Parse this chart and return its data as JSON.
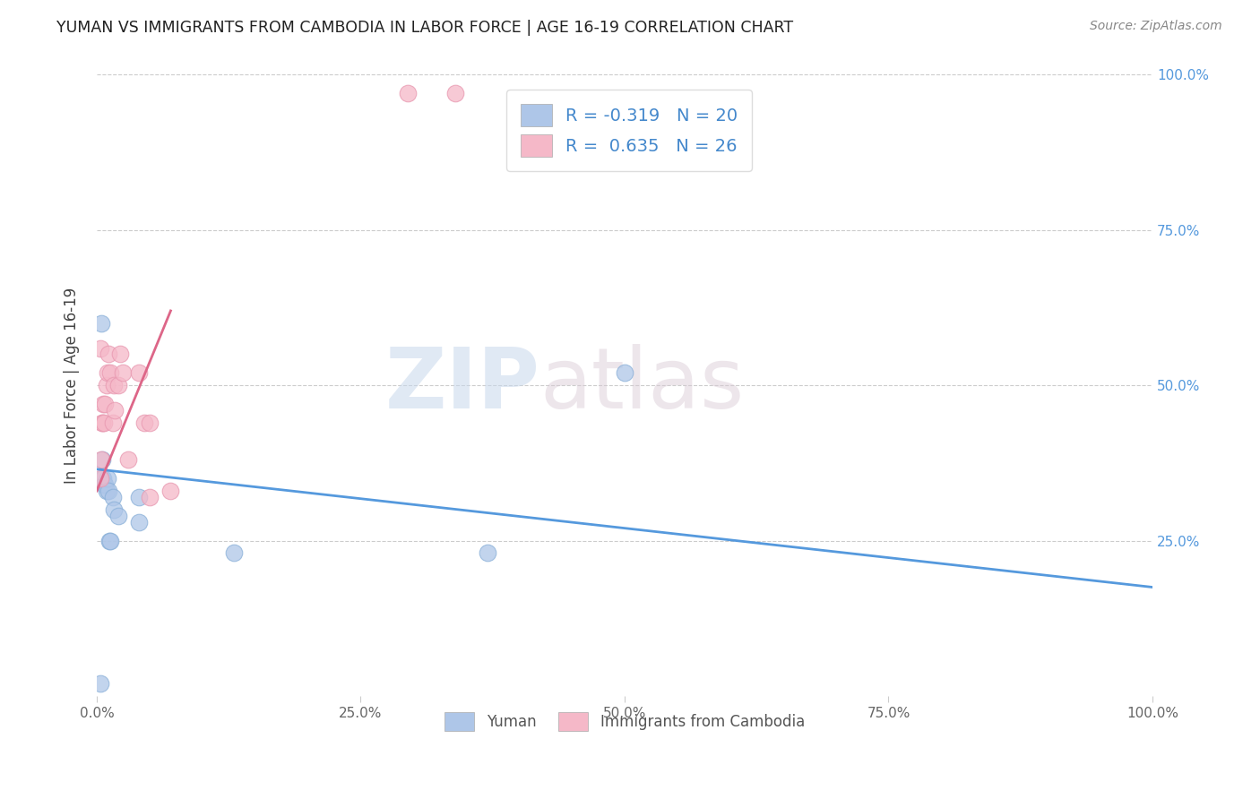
{
  "title": "YUMAN VS IMMIGRANTS FROM CAMBODIA IN LABOR FORCE | AGE 16-19 CORRELATION CHART",
  "source": "Source: ZipAtlas.com",
  "ylabel": "In Labor Force | Age 16-19",
  "xlim": [
    0.0,
    1.0
  ],
  "ylim": [
    0.0,
    1.0
  ],
  "xtick_labels": [
    "0.0%",
    "25.0%",
    "50.0%",
    "75.0%",
    "100.0%"
  ],
  "xtick_vals": [
    0.0,
    0.25,
    0.5,
    0.75,
    1.0
  ],
  "right_ytick_labels": [
    "25.0%",
    "50.0%",
    "75.0%",
    "100.0%"
  ],
  "right_ytick_vals": [
    0.25,
    0.5,
    0.75,
    1.0
  ],
  "legend_label1": "R = -0.319   N = 20",
  "legend_label2": "R =  0.635   N = 26",
  "bottom_legend1": "Yuman",
  "bottom_legend2": "Immigrants from Cambodia",
  "blue_color": "#aec6e8",
  "pink_color": "#f5b8c8",
  "blue_line_color": "#5599dd",
  "pink_line_color": "#dd6688",
  "watermark_zip": "ZIP",
  "watermark_atlas": "atlas",
  "yuman_x": [
    0.003,
    0.004,
    0.005,
    0.005,
    0.006,
    0.007,
    0.008,
    0.009,
    0.01,
    0.011,
    0.012,
    0.013,
    0.015,
    0.016,
    0.02,
    0.04,
    0.04,
    0.13,
    0.37,
    0.5
  ],
  "yuman_y": [
    0.02,
    0.6,
    0.35,
    0.38,
    0.35,
    0.34,
    0.34,
    0.33,
    0.35,
    0.33,
    0.25,
    0.25,
    0.32,
    0.3,
    0.29,
    0.32,
    0.28,
    0.23,
    0.23,
    0.52
  ],
  "cambodia_x": [
    0.003,
    0.003,
    0.004,
    0.005,
    0.005,
    0.006,
    0.007,
    0.008,
    0.009,
    0.01,
    0.011,
    0.013,
    0.015,
    0.016,
    0.017,
    0.02,
    0.022,
    0.025,
    0.03,
    0.04,
    0.045,
    0.05,
    0.05,
    0.07,
    0.295,
    0.34
  ],
  "cambodia_y": [
    0.56,
    0.35,
    0.38,
    0.44,
    0.44,
    0.47,
    0.44,
    0.47,
    0.5,
    0.52,
    0.55,
    0.52,
    0.44,
    0.5,
    0.46,
    0.5,
    0.55,
    0.52,
    0.38,
    0.52,
    0.44,
    0.44,
    0.32,
    0.33,
    0.97,
    0.97
  ],
  "blue_line_x": [
    0.0,
    1.0
  ],
  "blue_line_y_start": 0.365,
  "blue_line_y_end": 0.175,
  "pink_line_x_start": 0.0,
  "pink_line_x_end": 0.07,
  "pink_line_y_start": 0.33,
  "pink_line_y_end": 0.62
}
